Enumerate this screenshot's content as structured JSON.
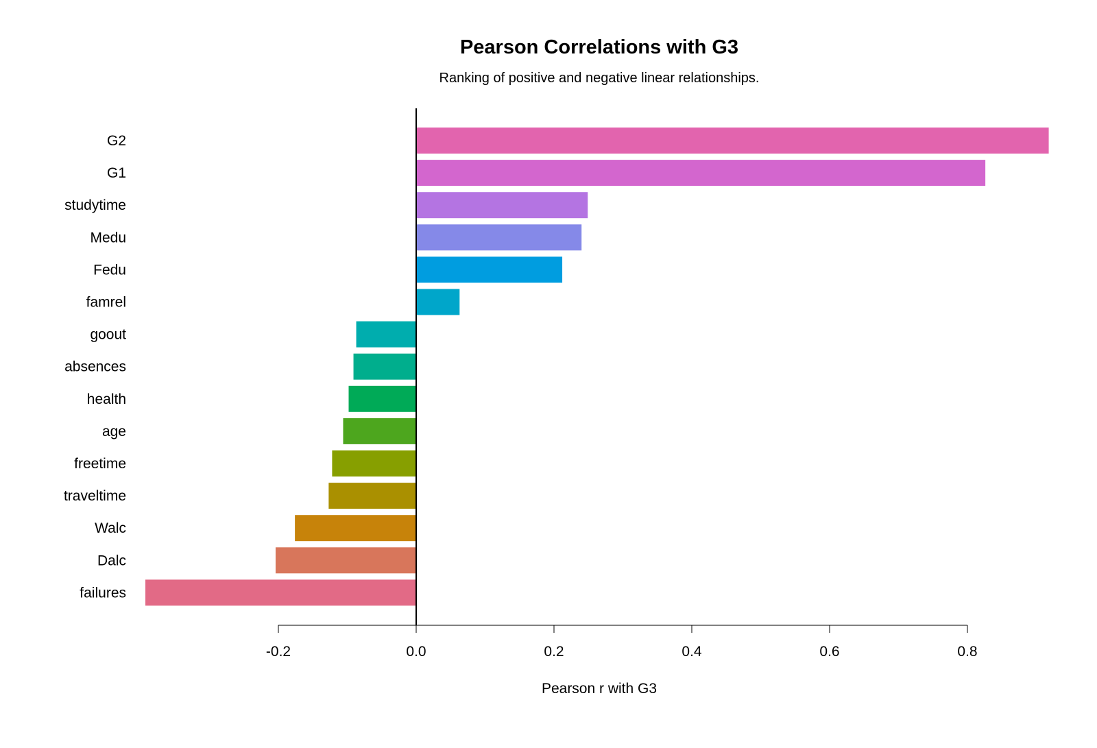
{
  "chart_data": {
    "type": "bar",
    "orientation": "horizontal",
    "title": "Pearson Correlations with G3",
    "subtitle": "Ranking of positive and negative linear relationships.",
    "xlabel": "Pearson r with G3",
    "ylabel": "",
    "xlim": [
      -0.4,
      0.92
    ],
    "xticks": [
      -0.2,
      0.0,
      0.2,
      0.4,
      0.6,
      0.8
    ],
    "xtick_labels": [
      "-0.2",
      "0.0",
      "0.2",
      "0.4",
      "0.6",
      "0.8"
    ],
    "grid": false,
    "legend": "none",
    "categories": [
      "G2",
      "G1",
      "studytime",
      "Medu",
      "Fedu",
      "famrel",
      "goout",
      "absences",
      "health",
      "age",
      "freetime",
      "traveltime",
      "Walc",
      "Dalc",
      "failures"
    ],
    "values": [
      0.918,
      0.826,
      0.249,
      0.24,
      0.212,
      0.063,
      -0.087,
      -0.091,
      -0.098,
      -0.106,
      -0.122,
      -0.127,
      -0.176,
      -0.204,
      -0.393
    ],
    "colors": [
      "#E264AE",
      "#D366CE",
      "#B474E2",
      "#8589E8",
      "#009DE0",
      "#00A6CA",
      "#00ADAE",
      "#00AE8D",
      "#00AA57",
      "#4DA61E",
      "#879F00",
      "#AA9000",
      "#C7830A",
      "#D8765B",
      "#E26A86"
    ]
  }
}
